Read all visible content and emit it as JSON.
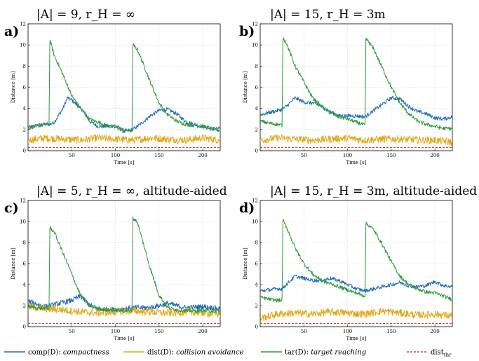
{
  "chart_data": [
    {
      "type": "line",
      "panel_label": "a)",
      "title": "|A| = 9, r_H = ∞",
      "xlabel": "Time [s]",
      "ylabel": "Distance [m]",
      "xlim": [
        0,
        220
      ],
      "ylim": [
        0,
        12
      ],
      "xticks": [
        50,
        100,
        150,
        200
      ],
      "yticks": [
        0,
        2,
        4,
        6,
        8,
        10,
        12
      ],
      "grid": true,
      "series": [
        {
          "name": "comp(D): compactness",
          "x": [
            0,
            10,
            20,
            25,
            30,
            40,
            45,
            50,
            55,
            60,
            65,
            70,
            80,
            90,
            100,
            110,
            120,
            130,
            140,
            150,
            160,
            170,
            180,
            190,
            200,
            210,
            220
          ],
          "values": [
            2.2,
            2.4,
            2.5,
            2.5,
            2.7,
            4.0,
            5.0,
            4.8,
            4.4,
            4.0,
            3.6,
            2.8,
            2.3,
            2.3,
            2.4,
            1.8,
            2.0,
            2.6,
            3.3,
            3.8,
            3.9,
            3.5,
            2.8,
            2.5,
            2.3,
            2.0,
            2.1
          ]
        },
        {
          "name": "dist(D): collision avoidance",
          "x": [
            0,
            20,
            40,
            60,
            80,
            100,
            120,
            140,
            160,
            180,
            200,
            220
          ],
          "values": [
            1.0,
            1.2,
            1.1,
            1.0,
            1.2,
            1.1,
            1.0,
            1.2,
            1.1,
            1.0,
            1.2,
            1.0
          ],
          "noise": 0.35
        },
        {
          "name": "tar(D): target reaching",
          "x": [
            0,
            10,
            20,
            24,
            25,
            30,
            40,
            50,
            60,
            70,
            80,
            90,
            100,
            110,
            115,
            119,
            120,
            125,
            130,
            140,
            150,
            160,
            170,
            180,
            190,
            200,
            210,
            220
          ],
          "values": [
            2.2,
            2.3,
            2.5,
            2.5,
            10.5,
            9.0,
            7.2,
            5.2,
            4.0,
            3.0,
            2.7,
            2.4,
            2.2,
            2.0,
            1.9,
            1.9,
            10.0,
            9.6,
            8.6,
            6.5,
            4.5,
            3.4,
            2.8,
            2.5,
            2.4,
            2.3,
            2.1,
            1.9
          ]
        },
        {
          "name": "dist_thr",
          "x": [
            0,
            220
          ],
          "values": [
            0.3,
            0.3
          ]
        }
      ]
    },
    {
      "type": "line",
      "panel_label": "b)",
      "title": "|A| = 15, r_H = 3m",
      "xlabel": "Time [s]",
      "ylabel": "Distance [m]",
      "xlim": [
        0,
        220
      ],
      "ylim": [
        0,
        12
      ],
      "xticks": [
        50,
        100,
        150,
        200
      ],
      "yticks": [
        0,
        2,
        4,
        6,
        8,
        10,
        12
      ],
      "grid": true,
      "series": [
        {
          "name": "comp(D): compactness",
          "x": [
            0,
            10,
            20,
            25,
            30,
            40,
            50,
            60,
            70,
            80,
            90,
            100,
            110,
            120,
            130,
            140,
            150,
            160,
            170,
            180,
            190,
            200,
            210,
            220
          ],
          "values": [
            3.4,
            3.6,
            3.8,
            3.9,
            4.2,
            5.0,
            4.6,
            4.5,
            4.2,
            3.7,
            3.3,
            3.3,
            3.3,
            3.2,
            3.8,
            4.4,
            5.0,
            4.9,
            4.2,
            3.7,
            3.5,
            3.1,
            3.0,
            3.2
          ]
        },
        {
          "name": "dist(D): collision avoidance",
          "x": [
            0,
            20,
            40,
            60,
            80,
            100,
            120,
            140,
            160,
            180,
            200,
            220
          ],
          "values": [
            1.0,
            1.2,
            1.1,
            1.0,
            1.1,
            1.2,
            1.0,
            1.1,
            1.1,
            1.0,
            1.0,
            0.8
          ],
          "noise": 0.35
        },
        {
          "name": "tar(D): target reaching",
          "x": [
            0,
            10,
            20,
            25,
            26,
            30,
            40,
            50,
            60,
            70,
            80,
            90,
            100,
            110,
            120,
            121,
            125,
            130,
            140,
            150,
            160,
            170,
            180,
            190,
            200,
            210,
            220
          ],
          "values": [
            2.8,
            2.6,
            2.5,
            2.4,
            10.7,
            10.2,
            8.0,
            6.5,
            5.0,
            4.2,
            3.6,
            3.2,
            3.0,
            2.7,
            2.4,
            10.6,
            10.2,
            9.6,
            7.8,
            6.0,
            4.5,
            3.5,
            2.8,
            2.5,
            2.3,
            2.1,
            2.1
          ]
        },
        {
          "name": "dist_thr",
          "x": [
            0,
            220
          ],
          "values": [
            0.3,
            0.3
          ]
        }
      ]
    },
    {
      "type": "line",
      "panel_label": "c)",
      "title": "|A| = 5, r_H = ∞, altitude-aided",
      "xlabel": "Time [s]",
      "ylabel": "Distance [m]",
      "xlim": [
        0,
        220
      ],
      "ylim": [
        0,
        12
      ],
      "xticks": [
        50,
        100,
        150,
        200
      ],
      "yticks": [
        0,
        2,
        4,
        6,
        8,
        10,
        12
      ],
      "grid": true,
      "series": [
        {
          "name": "comp(D): compactness",
          "x": [
            0,
            20,
            40,
            50,
            60,
            70,
            80,
            100,
            120,
            140,
            160,
            180,
            200,
            220
          ],
          "values": [
            2.4,
            1.9,
            2.3,
            2.5,
            2.9,
            2.1,
            1.7,
            1.6,
            1.8,
            1.8,
            2.2,
            1.8,
            1.9,
            1.7
          ],
          "noise": 0.25
        },
        {
          "name": "dist(D): collision avoidance",
          "x": [
            0,
            20,
            40,
            60,
            80,
            100,
            120,
            140,
            160,
            180,
            200,
            220
          ],
          "values": [
            1.9,
            1.7,
            1.6,
            1.4,
            1.3,
            1.4,
            1.5,
            1.4,
            1.3,
            1.4,
            1.3,
            1.2
          ],
          "noise": 0.35
        },
        {
          "name": "tar(D): target reaching",
          "x": [
            0,
            10,
            20,
            24,
            25,
            30,
            40,
            50,
            60,
            70,
            80,
            90,
            100,
            110,
            115,
            119,
            120,
            125,
            130,
            140,
            150,
            160,
            170,
            180,
            200,
            220
          ],
          "values": [
            1.9,
            1.8,
            1.7,
            1.7,
            9.4,
            9.0,
            7.0,
            5.0,
            3.0,
            2.0,
            1.7,
            1.6,
            1.6,
            1.5,
            1.5,
            1.5,
            10.3,
            10.0,
            8.5,
            5.5,
            3.0,
            1.8,
            1.6,
            1.5,
            1.5,
            1.5
          ]
        },
        {
          "name": "dist_thr",
          "x": [
            0,
            220
          ],
          "values": [
            0.3,
            0.3
          ]
        }
      ]
    },
    {
      "type": "line",
      "panel_label": "d)",
      "title": "|A| = 15, r_H = 3m, altitude-aided",
      "xlabel": "Time [s]",
      "ylabel": "Distance [m]",
      "xlim": [
        0,
        220
      ],
      "ylim": [
        0,
        12
      ],
      "xticks": [
        50,
        100,
        150,
        200
      ],
      "yticks": [
        0,
        2,
        4,
        6,
        8,
        10,
        12
      ],
      "grid": true,
      "series": [
        {
          "name": "comp(D): compactness",
          "x": [
            0,
            10,
            20,
            25,
            30,
            40,
            50,
            60,
            70,
            80,
            90,
            100,
            110,
            120,
            130,
            140,
            150,
            160,
            170,
            180,
            190,
            200,
            210,
            220
          ],
          "values": [
            3.4,
            3.5,
            3.6,
            3.6,
            4.0,
            4.8,
            4.6,
            4.4,
            4.4,
            4.6,
            4.4,
            4.0,
            3.6,
            3.4,
            3.6,
            3.8,
            4.0,
            4.2,
            3.9,
            3.8,
            3.9,
            4.3,
            3.9,
            3.8
          ]
        },
        {
          "name": "dist(D): collision avoidance",
          "x": [
            0,
            20,
            40,
            60,
            80,
            100,
            120,
            140,
            160,
            180,
            200,
            220
          ],
          "values": [
            0.8,
            1.2,
            1.3,
            1.2,
            1.4,
            1.3,
            1.2,
            1.5,
            1.3,
            1.1,
            1.2,
            1.0
          ],
          "noise": 0.35
        },
        {
          "name": "tar(D): target reaching",
          "x": [
            0,
            10,
            20,
            25,
            26,
            30,
            40,
            50,
            60,
            70,
            80,
            90,
            100,
            110,
            120,
            121,
            125,
            130,
            140,
            150,
            160,
            170,
            180,
            190,
            200,
            210,
            220
          ],
          "values": [
            2.8,
            2.6,
            2.5,
            2.5,
            10.1,
            9.5,
            7.5,
            6.0,
            5.0,
            4.4,
            4.1,
            3.8,
            3.5,
            3.2,
            2.9,
            9.8,
            9.6,
            9.2,
            7.8,
            6.2,
            4.8,
            4.0,
            3.6,
            3.3,
            3.2,
            2.9,
            2.6
          ]
        },
        {
          "name": "dist_thr",
          "x": [
            0,
            220
          ],
          "values": [
            0.3,
            0.3
          ]
        }
      ]
    }
  ],
  "legend": {
    "placement": "bottom",
    "items": [
      {
        "key": "comp",
        "prefix": "comp(D): ",
        "desc": "compactness",
        "color": "#1f6db5",
        "dash": false
      },
      {
        "key": "dist",
        "prefix": "dist(D): ",
        "desc": "collision avoidance",
        "color": "#e0a818",
        "dash": false
      },
      {
        "key": "tar",
        "prefix": "tar(D): ",
        "desc": "target reaching",
        "color": "#2e9a3a",
        "dash": false
      },
      {
        "key": "thr",
        "prefix": "dist",
        "desc": "thr",
        "color": "#d04040",
        "dash": true
      }
    ]
  },
  "colors": {
    "comp": "#1f6db5",
    "dist": "#e0a818",
    "tar": "#2e9a3a",
    "thr": "#d04040"
  }
}
